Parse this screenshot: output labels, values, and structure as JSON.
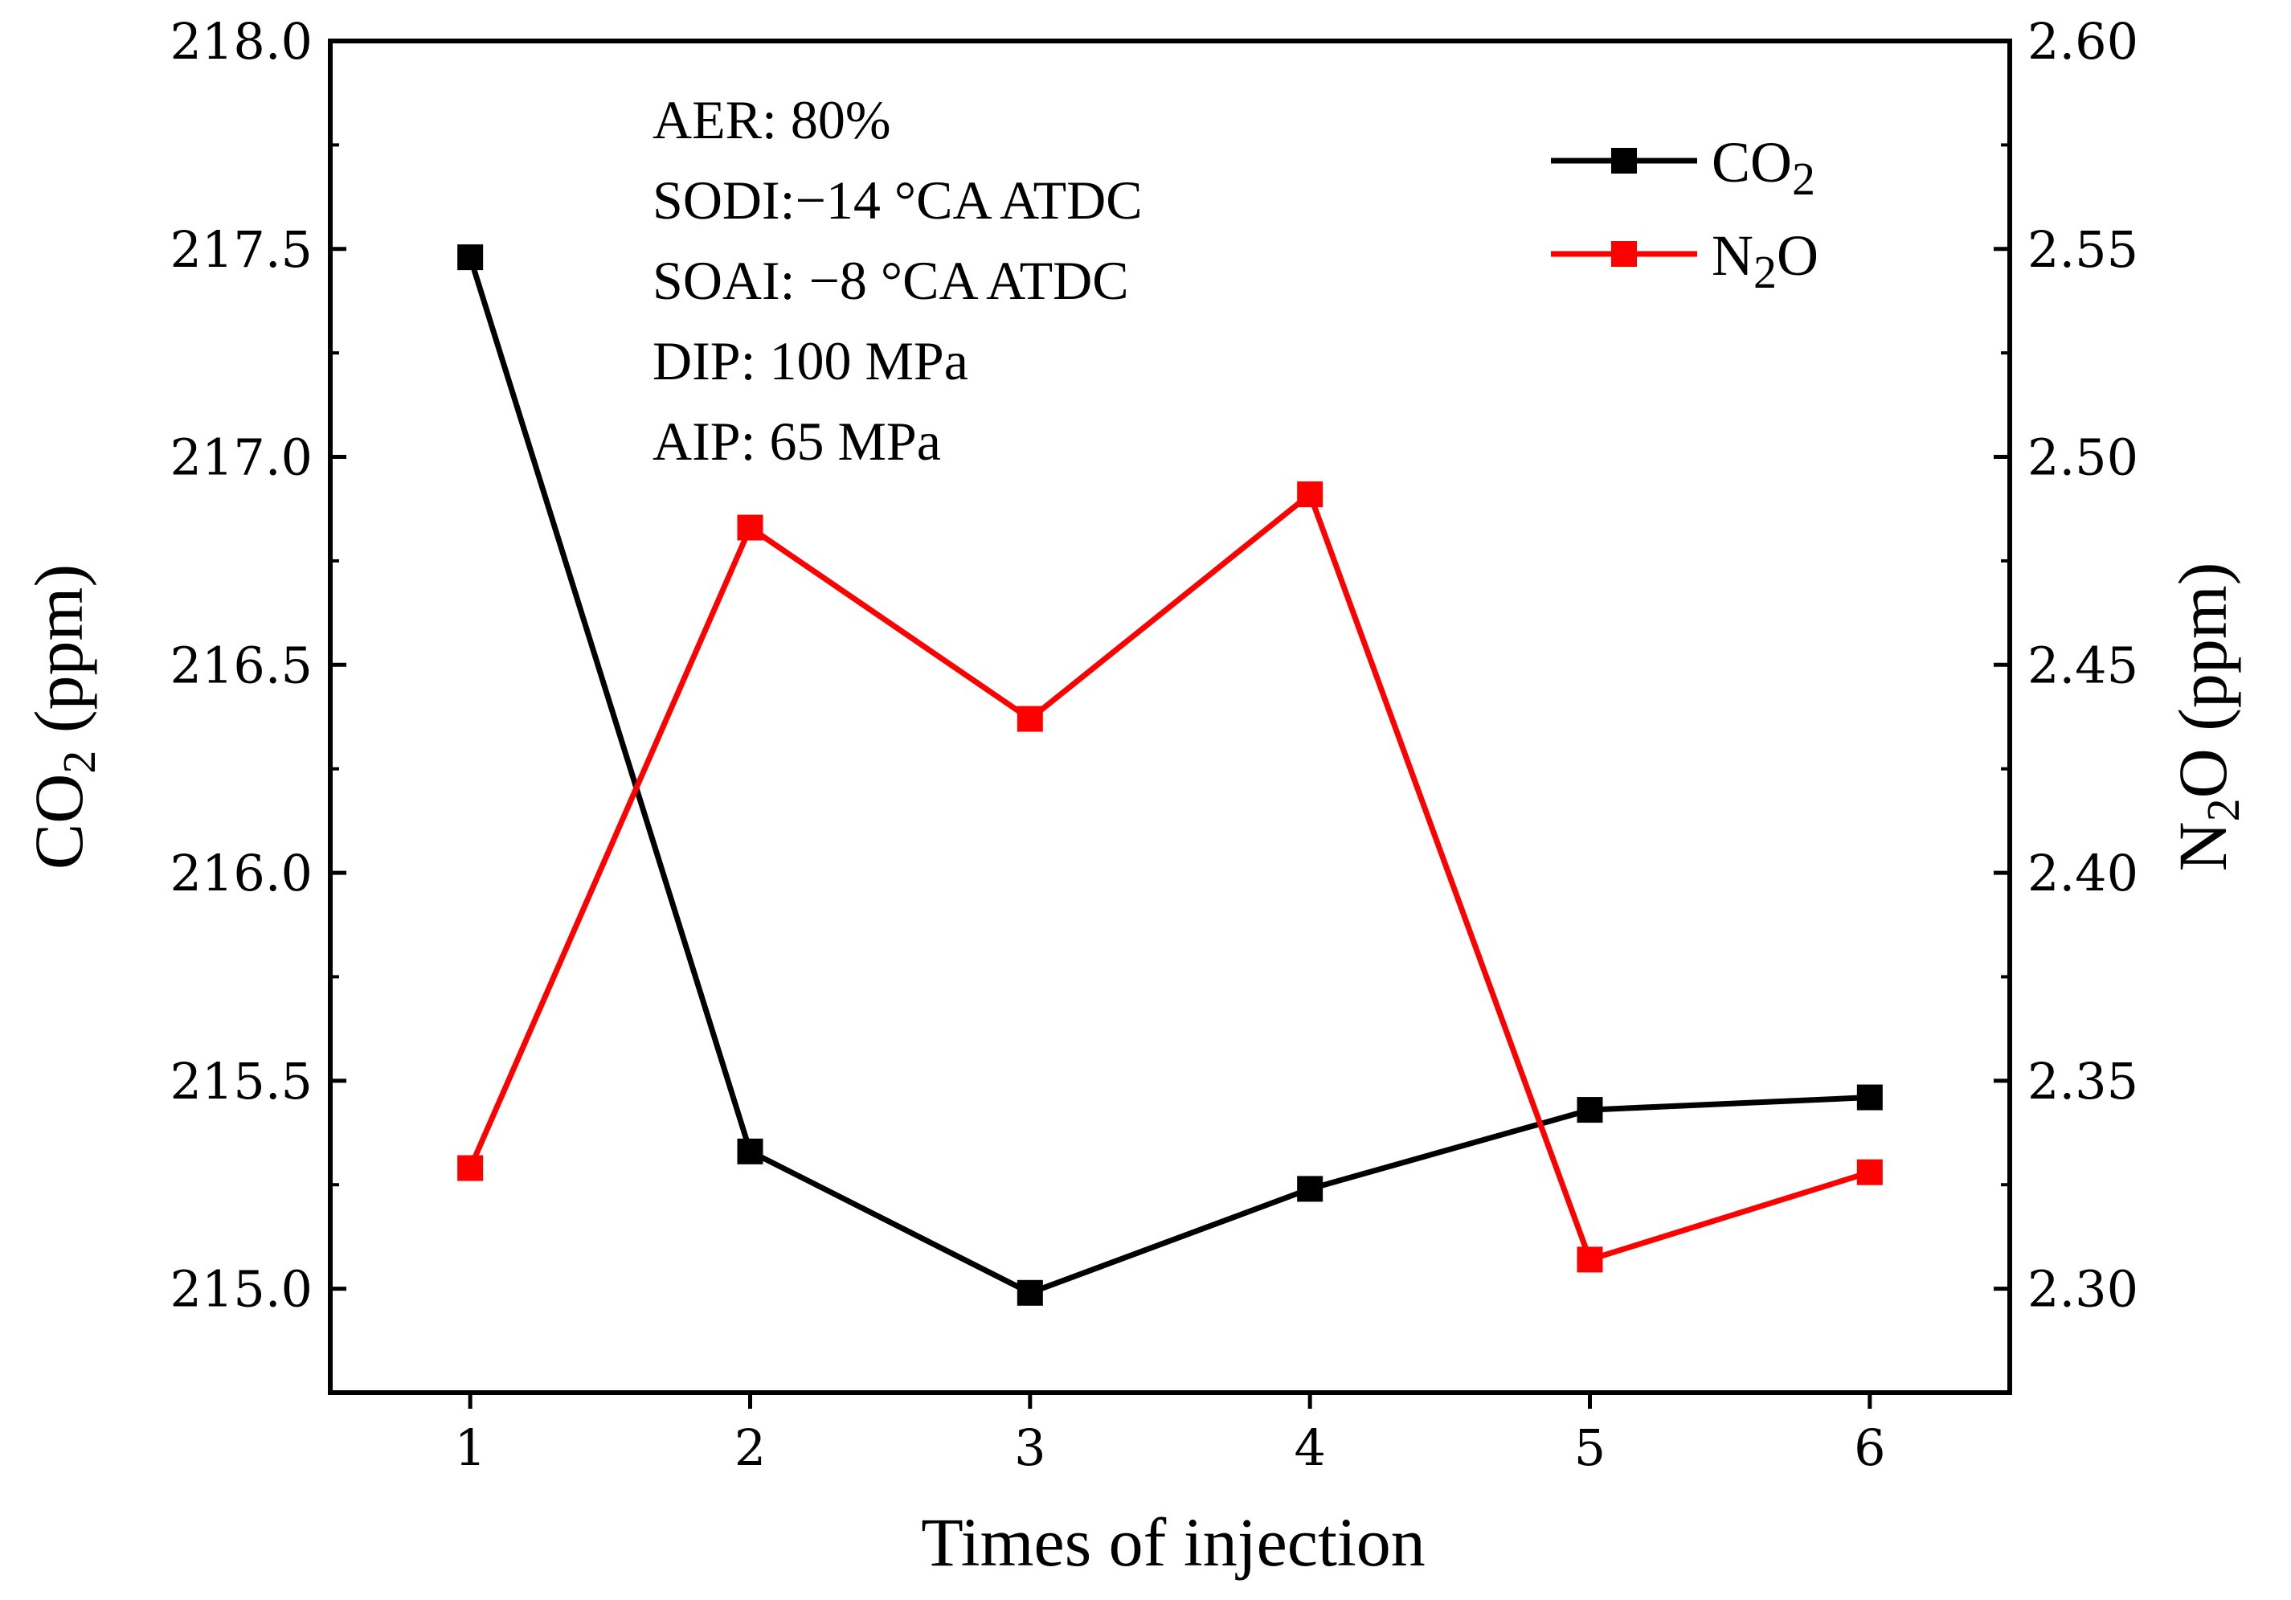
{
  "chart_data": {
    "type": "line",
    "xlabel": "Times of injection",
    "x": [
      1,
      2,
      3,
      4,
      5,
      6
    ],
    "x_ticks": [
      "1",
      "2",
      "3",
      "4",
      "5",
      "6"
    ],
    "xlim": [
      0.5,
      6.5
    ],
    "y_left": {
      "label_main": "CO",
      "label_sub": "2",
      "label_unit": " (ppm)",
      "lim": [
        214.75,
        218.0
      ],
      "ticks": [
        "215.0",
        "215.5",
        "216.0",
        "216.5",
        "217.0",
        "217.5",
        "218.0"
      ],
      "tick_values": [
        215.0,
        215.5,
        216.0,
        216.5,
        217.0,
        217.5,
        218.0
      ]
    },
    "y_right": {
      "label_main": "N",
      "label_sub": "2",
      "label_tail": "O (ppm)",
      "lim": [
        2.275,
        2.6
      ],
      "ticks": [
        "2.30",
        "2.35",
        "2.40",
        "2.45",
        "2.50",
        "2.55",
        "2.60"
      ],
      "tick_values": [
        2.3,
        2.35,
        2.4,
        2.45,
        2.5,
        2.55,
        2.6
      ]
    },
    "series": [
      {
        "name_main": "CO",
        "name_sub": "2",
        "name_tail": "",
        "axis": "left",
        "color": "#000000",
        "values": [
          217.48,
          215.33,
          214.99,
          215.24,
          215.43,
          215.46
        ]
      },
      {
        "name_main": "N",
        "name_sub": "2",
        "name_tail": "O",
        "axis": "right",
        "color": "#ff0000",
        "values": [
          2.329,
          2.483,
          2.437,
          2.491,
          2.307,
          2.328
        ]
      }
    ],
    "annotations": [
      "AER: 80%",
      "SODI:−14 °CA ATDC",
      "SOAI:  −8 °CA ATDC",
      "DIP: 100 MPa",
      "AIP:   65 MPa"
    ]
  }
}
